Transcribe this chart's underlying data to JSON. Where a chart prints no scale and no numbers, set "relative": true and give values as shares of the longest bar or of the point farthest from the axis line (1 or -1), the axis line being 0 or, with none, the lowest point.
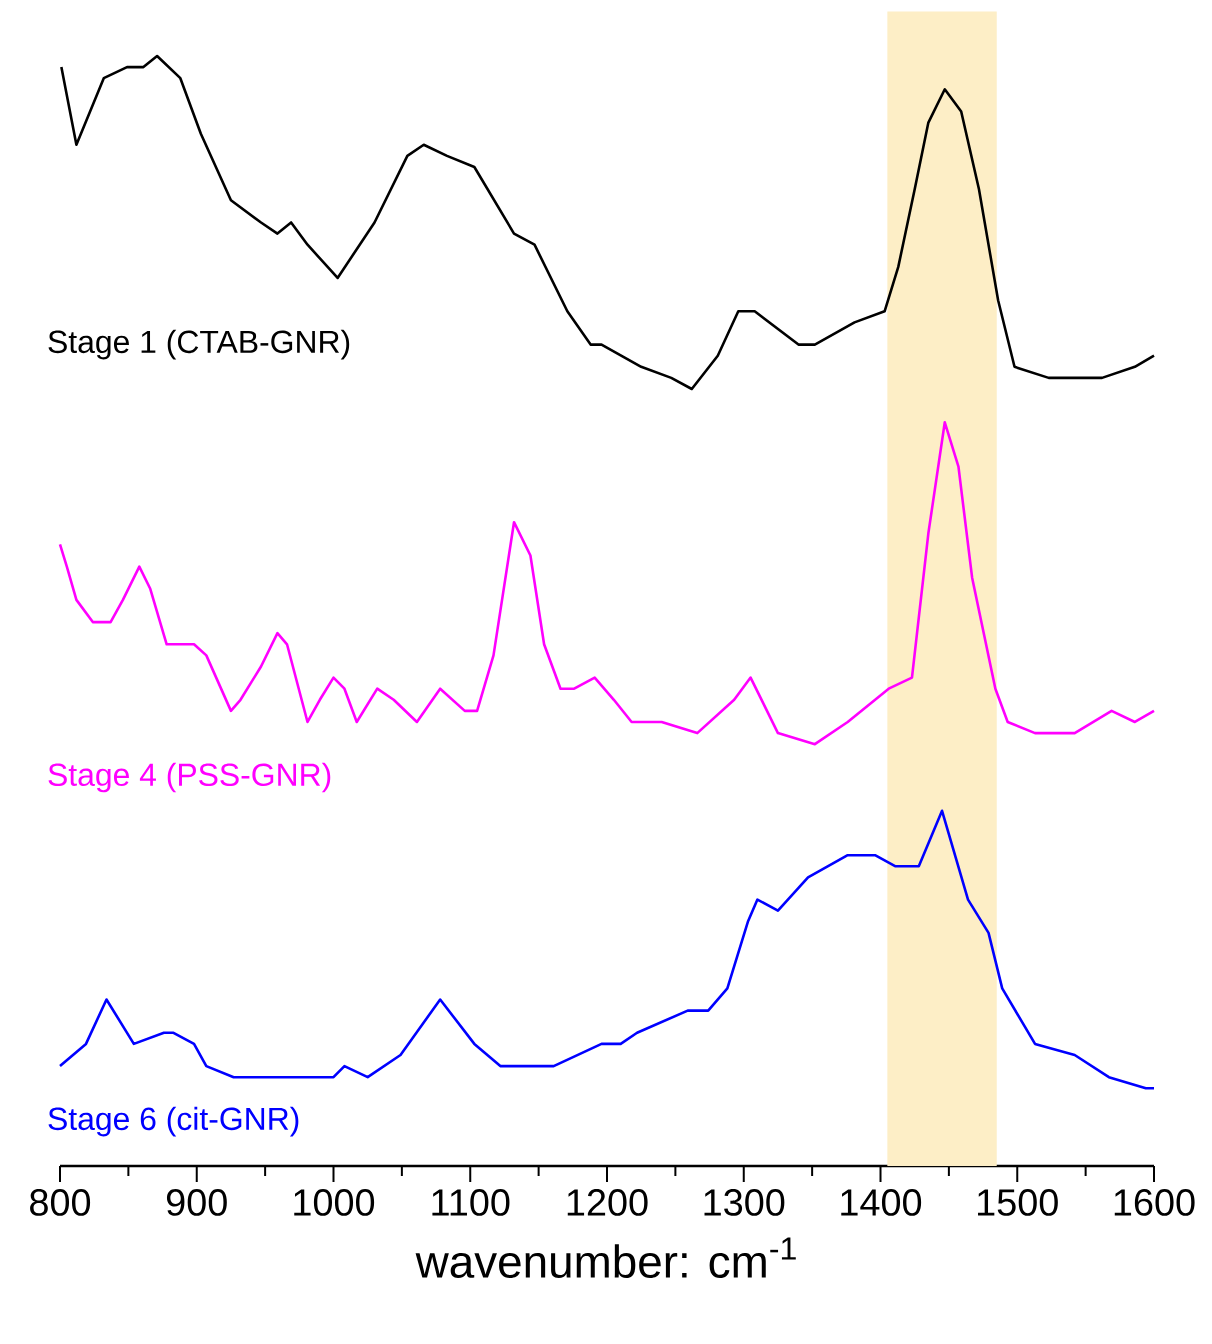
{
  "chart_data": {
    "type": "line",
    "xlabel": "wavenumber: cm$^{-1}$",
    "relative": true,
    "xlim": [
      800,
      1600
    ],
    "xticks": [
      800,
      900,
      1000,
      1100,
      1200,
      1300,
      1400,
      1500,
      1600
    ],
    "bands": [
      {
        "axis": "x",
        "from": 1405,
        "to": 1485,
        "color": "#fdeec6"
      }
    ],
    "series": [
      {
        "name": "Stage 1 (CTAB-GNR)",
        "color": "#000000",
        "x": [
          801,
          812,
          832,
          849,
          861,
          871,
          888,
          903,
          925,
          947,
          959,
          969,
          981,
          1003,
          1030,
          1054,
          1066,
          1083,
          1103,
          1132,
          1147,
          1171,
          1188,
          1196,
          1225,
          1247,
          1262,
          1281,
          1296,
          1308,
          1340,
          1352,
          1381,
          1403,
          1413,
          1425,
          1435,
          1447,
          1459,
          1472,
          1486,
          1498,
          1523,
          1562,
          1586,
          1600
        ],
        "values": [
          0.99,
          0.92,
          0.98,
          0.99,
          0.99,
          1.0,
          0.98,
          0.93,
          0.87,
          0.85,
          0.84,
          0.85,
          0.83,
          0.8,
          0.85,
          0.91,
          0.92,
          0.91,
          0.9,
          0.84,
          0.83,
          0.77,
          0.74,
          0.74,
          0.72,
          0.71,
          0.7,
          0.73,
          0.77,
          0.77,
          0.74,
          0.74,
          0.76,
          0.77,
          0.81,
          0.88,
          0.94,
          0.97,
          0.95,
          0.88,
          0.78,
          0.72,
          0.71,
          0.71,
          0.72,
          0.73
        ]
      },
      {
        "name": "Stage 4 (PSS-GNR)",
        "color": "#ff00ff",
        "x": [
          800,
          805,
          812,
          824,
          837,
          846,
          858,
          866,
          878,
          898,
          907,
          925,
          932,
          947,
          959,
          966,
          981,
          990,
          1000,
          1008,
          1017,
          1032,
          1044,
          1061,
          1078,
          1096,
          1105,
          1117,
          1132,
          1144,
          1154,
          1166,
          1176,
          1191,
          1205,
          1218,
          1240,
          1266,
          1293,
          1305,
          1325,
          1352,
          1376,
          1406,
          1423,
          1435,
          1447,
          1457,
          1467,
          1484,
          1493,
          1513,
          1542,
          1569,
          1586,
          1600
        ],
        "values": [
          0.56,
          0.54,
          0.51,
          0.49,
          0.49,
          0.51,
          0.54,
          0.52,
          0.47,
          0.47,
          0.46,
          0.41,
          0.42,
          0.45,
          0.48,
          0.47,
          0.4,
          0.42,
          0.44,
          0.43,
          0.4,
          0.43,
          0.42,
          0.4,
          0.43,
          0.41,
          0.41,
          0.46,
          0.58,
          0.55,
          0.47,
          0.43,
          0.43,
          0.44,
          0.42,
          0.4,
          0.4,
          0.39,
          0.42,
          0.44,
          0.39,
          0.38,
          0.4,
          0.43,
          0.44,
          0.57,
          0.67,
          0.63,
          0.53,
          0.43,
          0.4,
          0.39,
          0.39,
          0.41,
          0.4,
          0.41
        ]
      },
      {
        "name": "Stage 6 (cit-GNR)",
        "color": "#0000ff",
        "x": [
          800,
          819,
          834,
          854,
          876,
          883,
          898,
          907,
          927,
          942,
          959,
          981,
          1000,
          1008,
          1025,
          1049,
          1078,
          1103,
          1122,
          1161,
          1196,
          1210,
          1222,
          1259,
          1274,
          1288,
          1303,
          1310,
          1325,
          1347,
          1376,
          1396,
          1411,
          1428,
          1445,
          1464,
          1479,
          1489,
          1513,
          1542,
          1567,
          1594,
          1600
        ],
        "values": [
          0.09,
          0.11,
          0.15,
          0.11,
          0.12,
          0.12,
          0.11,
          0.09,
          0.08,
          0.08,
          0.08,
          0.08,
          0.08,
          0.09,
          0.08,
          0.1,
          0.15,
          0.11,
          0.09,
          0.09,
          0.11,
          0.11,
          0.12,
          0.14,
          0.14,
          0.16,
          0.22,
          0.24,
          0.23,
          0.26,
          0.28,
          0.28,
          0.27,
          0.27,
          0.32,
          0.24,
          0.21,
          0.16,
          0.11,
          0.1,
          0.08,
          0.07,
          0.07
        ]
      }
    ]
  }
}
